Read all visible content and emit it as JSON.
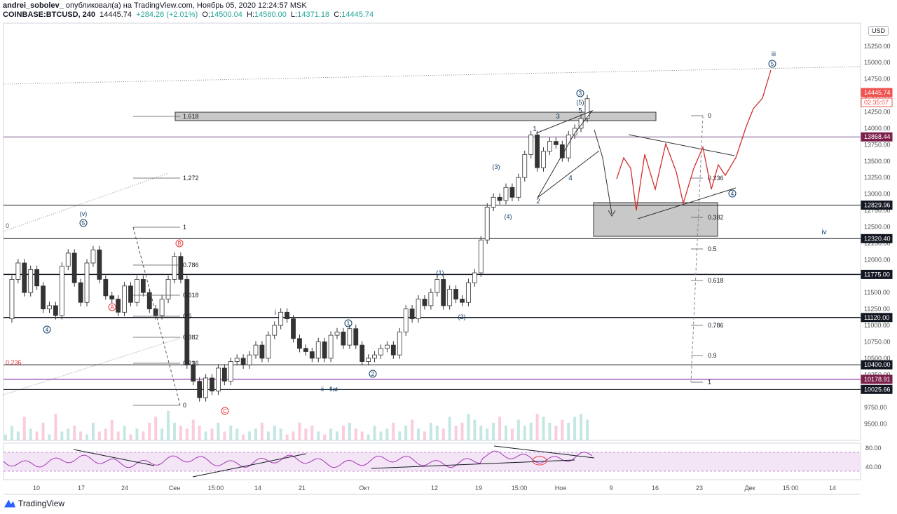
{
  "header": {
    "author": "andrei_sobolev_",
    "published": "опубликовал(а) на TradingView.com, Ноябрь 05, 2020 12:24:57 MSK",
    "symbol": "COINBASE:BTCUSD, 240",
    "last": "14445.74",
    "change": "+284.26 (+2.01%)",
    "o_label": "O:",
    "o": "14500.04",
    "h_label": "H:",
    "h": "14560.00",
    "l_label": "L:",
    "l": "14371.18",
    "c_label": "C:",
    "c": "14445.74"
  },
  "currency": "USD",
  "brand": "TradingView",
  "colors": {
    "up": "#26a69a",
    "down": "#ef5350",
    "rsi": "#9c27b0",
    "wave": "#2962ff",
    "corr": "#e53935",
    "projection": "#d32f2f"
  },
  "chart_data": {
    "type": "candlestick",
    "symbol": "COINBASE:BTCUSD",
    "timeframe": "240",
    "ylim": [
      9250,
      15600
    ],
    "y_ticks": [
      "15250.00",
      "15000.00",
      "14750.00",
      "14500.00",
      "14250.00",
      "14000.00",
      "13750.00",
      "13500.00",
      "13250.00",
      "13000.00",
      "12750.00",
      "12500.00",
      "12250.00",
      "12000.00",
      "11750.00",
      "11500.00",
      "11250.00",
      "11000.00",
      "10750.00",
      "10500.00",
      "10250.00",
      "10000.00",
      "9750.00",
      "9500.00"
    ],
    "x_ticks": [
      "10",
      "17",
      "24",
      "Сен",
      "15:00",
      "14",
      "21",
      "Окт",
      "12",
      "19",
      "15:00",
      "Ноя",
      "9",
      "16",
      "23",
      "Дек",
      "15:00",
      "14"
    ],
    "price_labels": [
      {
        "text": "14445.74",
        "kind": "last"
      },
      {
        "text": "02:35:07",
        "kind": "timer"
      },
      {
        "text": "13868.44",
        "kind": "line"
      },
      {
        "text": "12829.96",
        "kind": "line"
      },
      {
        "text": "12320.40",
        "kind": "line"
      },
      {
        "text": "11775.00",
        "kind": "line"
      },
      {
        "text": "11120.00",
        "kind": "line"
      },
      {
        "text": "10400.00",
        "kind": "line"
      },
      {
        "text": "10178.91",
        "kind": "line"
      },
      {
        "text": "10025.66",
        "kind": "line"
      }
    ],
    "price_path": [
      11100,
      11700,
      11950,
      11500,
      11850,
      11600,
      11250,
      11300,
      11150,
      11900,
      12100,
      11650,
      11350,
      11950,
      12150,
      11700,
      11450,
      11400,
      11200,
      11600,
      11350,
      11700,
      11500,
      11250,
      11150,
      11400,
      11700,
      12050,
      11700,
      10400,
      10150,
      9900,
      10200,
      10000,
      10350,
      10150,
      10450,
      10500,
      10400,
      10550,
      10700,
      10500,
      10850,
      11000,
      11200,
      11100,
      10800,
      10650,
      10600,
      10500,
      10750,
      10500,
      10850,
      10900,
      10700,
      10950,
      10700,
      10450,
      10500,
      10550,
      10650,
      10700,
      10550,
      10900,
      11250,
      11100,
      11400,
      11300,
      11500,
      11700,
      11300,
      11550,
      11400,
      11350,
      11650,
      11800,
      12300,
      12800,
      12950,
      12900,
      13100,
      12950,
      13250,
      13600,
      13900,
      13400,
      13650,
      13800,
      13750,
      13550,
      13900,
      14000,
      14150,
      14450
    ],
    "volume": [
      2,
      5,
      3,
      8,
      4,
      3,
      6,
      2,
      9,
      3,
      4,
      5,
      3,
      2,
      6,
      3,
      4,
      7,
      3,
      5,
      2,
      4,
      3,
      6,
      8,
      4,
      10,
      6,
      5,
      4,
      7,
      5,
      3,
      4,
      6,
      3,
      5,
      4,
      2,
      3,
      4,
      6,
      3,
      5,
      4,
      2,
      3,
      6,
      4,
      5,
      3,
      2,
      4,
      3,
      5,
      6,
      4,
      3,
      2,
      5,
      3,
      4,
      6,
      3,
      5,
      7,
      4,
      3,
      6,
      5,
      4,
      8,
      5,
      6,
      9,
      7,
      5,
      4,
      6,
      8,
      5,
      4,
      7,
      5,
      6,
      9,
      8,
      6,
      5,
      7,
      6,
      8,
      9,
      7
    ],
    "rsi_ticks": [
      "80.00",
      "40.00"
    ],
    "fib_left": [
      {
        "level": "1.618"
      },
      {
        "level": "1.272"
      },
      {
        "level": "1"
      },
      {
        "level": "0.786"
      },
      {
        "level": "0.618"
      },
      {
        "level": "0.5"
      },
      {
        "level": "0.382"
      },
      {
        "level": "0.236"
      },
      {
        "level": "0"
      }
    ],
    "fib_right": [
      {
        "level": "0"
      },
      {
        "level": "0.236"
      },
      {
        "level": "0.382"
      },
      {
        "level": "0.5"
      },
      {
        "level": "0.618"
      },
      {
        "level": "0.786"
      },
      {
        "level": "0.9"
      },
      {
        "level": "1"
      }
    ],
    "misc_labels": [
      "0.236",
      "0"
    ],
    "wave_labels": [
      {
        "text": "(v)"
      },
      {
        "text": "5",
        "circle": true
      },
      {
        "text": "4",
        "circle": true
      },
      {
        "text": "B",
        "circle": true,
        "corr": true
      },
      {
        "text": "A",
        "circle": true,
        "corr": true
      },
      {
        "text": "C",
        "circle": true,
        "corr": true
      },
      {
        "text": "i"
      },
      {
        "text": "ii - flat"
      },
      {
        "text": "1",
        "circle": true
      },
      {
        "text": "2",
        "circle": true
      },
      {
        "text": "(1)"
      },
      {
        "text": "(2)"
      },
      {
        "text": "(3)"
      },
      {
        "text": "(4)"
      },
      {
        "text": "1"
      },
      {
        "text": "2"
      },
      {
        "text": "3"
      },
      {
        "text": "4"
      },
      {
        "text": "5"
      },
      {
        "text": "(5)"
      },
      {
        "text": "3",
        "circle": true
      },
      {
        "text": "iii"
      },
      {
        "text": "5",
        "circle": true
      },
      {
        "text": "4",
        "circle": true
      },
      {
        "text": "iv"
      }
    ]
  }
}
